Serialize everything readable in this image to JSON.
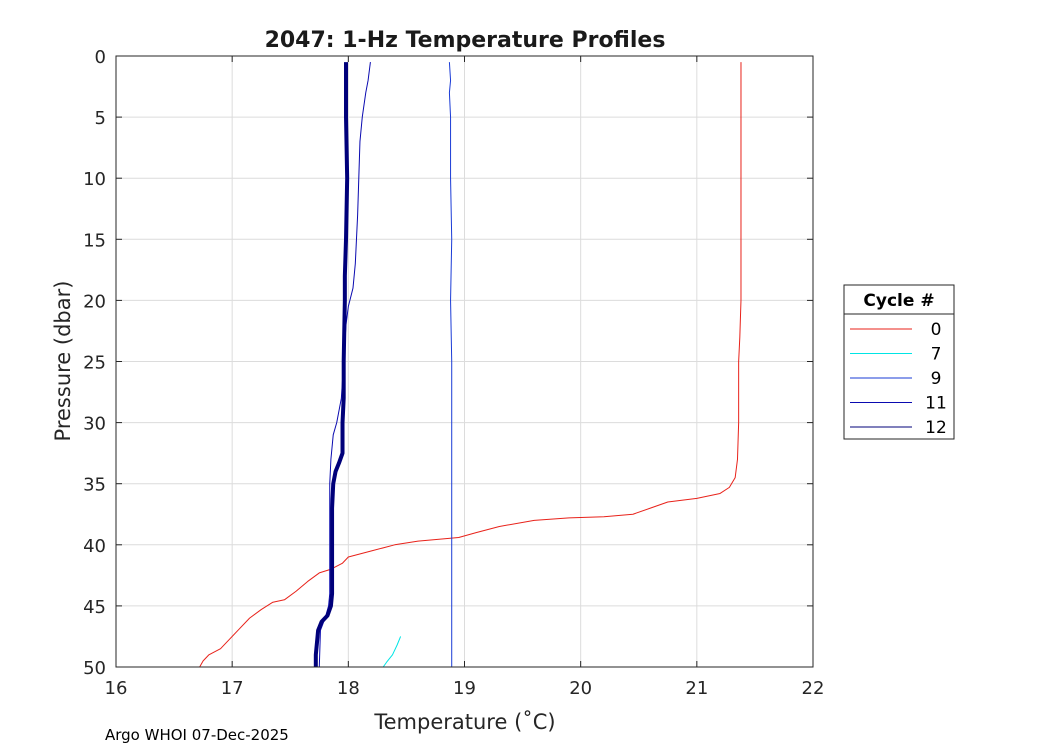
{
  "chart_data": {
    "type": "line",
    "title": "2047: 1-Hz Temperature Profiles",
    "xlabel": "Temperature (˚C)",
    "ylabel": "Pressure (dbar)",
    "xlim": [
      16,
      22
    ],
    "ylim": [
      0,
      50
    ],
    "y_reversed": true,
    "grid": true,
    "x_ticks": [
      "16",
      "17",
      "18",
      "19",
      "20",
      "21",
      "22"
    ],
    "y_ticks": [
      "0",
      "5",
      "10",
      "15",
      "20",
      "25",
      "30",
      "35",
      "40",
      "45",
      "50"
    ],
    "legend": {
      "title": "Cycle #",
      "placement": "outside-right"
    },
    "series": [
      {
        "name": "0",
        "color": "#e8221a",
        "points": [
          [
            21.38,
            0.5
          ],
          [
            21.38,
            5
          ],
          [
            21.38,
            10
          ],
          [
            21.38,
            15
          ],
          [
            21.38,
            20
          ],
          [
            21.37,
            23
          ],
          [
            21.36,
            25
          ],
          [
            21.36,
            30
          ],
          [
            21.35,
            33
          ],
          [
            21.33,
            34.5
          ],
          [
            21.28,
            35.3
          ],
          [
            21.2,
            35.8
          ],
          [
            21.0,
            36.2
          ],
          [
            20.75,
            36.5
          ],
          [
            20.6,
            37.0
          ],
          [
            20.45,
            37.5
          ],
          [
            20.2,
            37.7
          ],
          [
            19.9,
            37.8
          ],
          [
            19.6,
            38.0
          ],
          [
            19.3,
            38.5
          ],
          [
            19.1,
            39.0
          ],
          [
            18.95,
            39.4
          ],
          [
            18.6,
            39.7
          ],
          [
            18.4,
            40.0
          ],
          [
            18.2,
            40.5
          ],
          [
            18.0,
            41.0
          ],
          [
            17.95,
            41.5
          ],
          [
            17.85,
            42.0
          ],
          [
            17.75,
            42.3
          ],
          [
            17.65,
            43.0
          ],
          [
            17.55,
            43.8
          ],
          [
            17.45,
            44.5
          ],
          [
            17.35,
            44.7
          ],
          [
            17.25,
            45.3
          ],
          [
            17.15,
            46.0
          ],
          [
            17.05,
            47.0
          ],
          [
            16.95,
            48.0
          ],
          [
            16.9,
            48.5
          ],
          [
            16.8,
            49.0
          ],
          [
            16.75,
            49.5
          ],
          [
            16.72,
            50.0
          ]
        ]
      },
      {
        "name": "7",
        "color": "#00e5e5",
        "points": [
          [
            18.45,
            47.5
          ],
          [
            18.42,
            48.2
          ],
          [
            18.38,
            49.0
          ],
          [
            18.33,
            49.6
          ],
          [
            18.3,
            50.0
          ]
        ]
      },
      {
        "name": "9",
        "color": "#1a3bd6",
        "points": [
          [
            18.87,
            0.5
          ],
          [
            18.88,
            2
          ],
          [
            18.87,
            3
          ],
          [
            18.88,
            5
          ],
          [
            18.88,
            10
          ],
          [
            18.89,
            15
          ],
          [
            18.88,
            20
          ],
          [
            18.89,
            25
          ],
          [
            18.89,
            30
          ],
          [
            18.89,
            35
          ],
          [
            18.89,
            40
          ],
          [
            18.89,
            45
          ],
          [
            18.89,
            50
          ]
        ]
      },
      {
        "name": "11",
        "color": "#0a0ab0",
        "points": [
          [
            18.19,
            0.5
          ],
          [
            18.17,
            2.0
          ],
          [
            18.15,
            3.0
          ],
          [
            18.12,
            5.0
          ],
          [
            18.1,
            7.0
          ],
          [
            18.09,
            10.0
          ],
          [
            18.08,
            13.0
          ],
          [
            18.06,
            17.0
          ],
          [
            18.04,
            19.0
          ],
          [
            18.0,
            20.5
          ],
          [
            17.98,
            22.0
          ],
          [
            17.96,
            25.0
          ],
          [
            17.94,
            28.0
          ],
          [
            17.9,
            30.0
          ],
          [
            17.87,
            31.0
          ],
          [
            17.85,
            33.0
          ],
          [
            17.84,
            35.0
          ],
          [
            17.84,
            38.0
          ],
          [
            17.84,
            40.0
          ],
          [
            17.84,
            42.0
          ],
          [
            17.84,
            44.0
          ],
          [
            17.83,
            45.0
          ],
          [
            17.8,
            46.0
          ],
          [
            17.76,
            47.0
          ],
          [
            17.75,
            50.0
          ]
        ]
      },
      {
        "name": "12",
        "color": "#00007a",
        "width": 4,
        "points": [
          [
            17.98,
            0.5
          ],
          [
            17.98,
            5
          ],
          [
            17.99,
            10
          ],
          [
            17.98,
            15
          ],
          [
            17.97,
            18
          ],
          [
            17.97,
            20
          ],
          [
            17.96,
            25
          ],
          [
            17.96,
            28
          ],
          [
            17.95,
            30
          ],
          [
            17.95,
            32.5
          ],
          [
            17.92,
            33.3
          ],
          [
            17.89,
            34.0
          ],
          [
            17.87,
            35.0
          ],
          [
            17.86,
            37.0
          ],
          [
            17.86,
            40.0
          ],
          [
            17.86,
            42.0
          ],
          [
            17.86,
            44.0
          ],
          [
            17.85,
            45.0
          ],
          [
            17.82,
            45.8
          ],
          [
            17.77,
            46.3
          ],
          [
            17.74,
            47.0
          ],
          [
            17.73,
            48.0
          ],
          [
            17.72,
            49.0
          ],
          [
            17.72,
            50.0
          ]
        ]
      }
    ]
  },
  "footer": {
    "credit": "Argo WHOI 07-Dec-2025"
  }
}
